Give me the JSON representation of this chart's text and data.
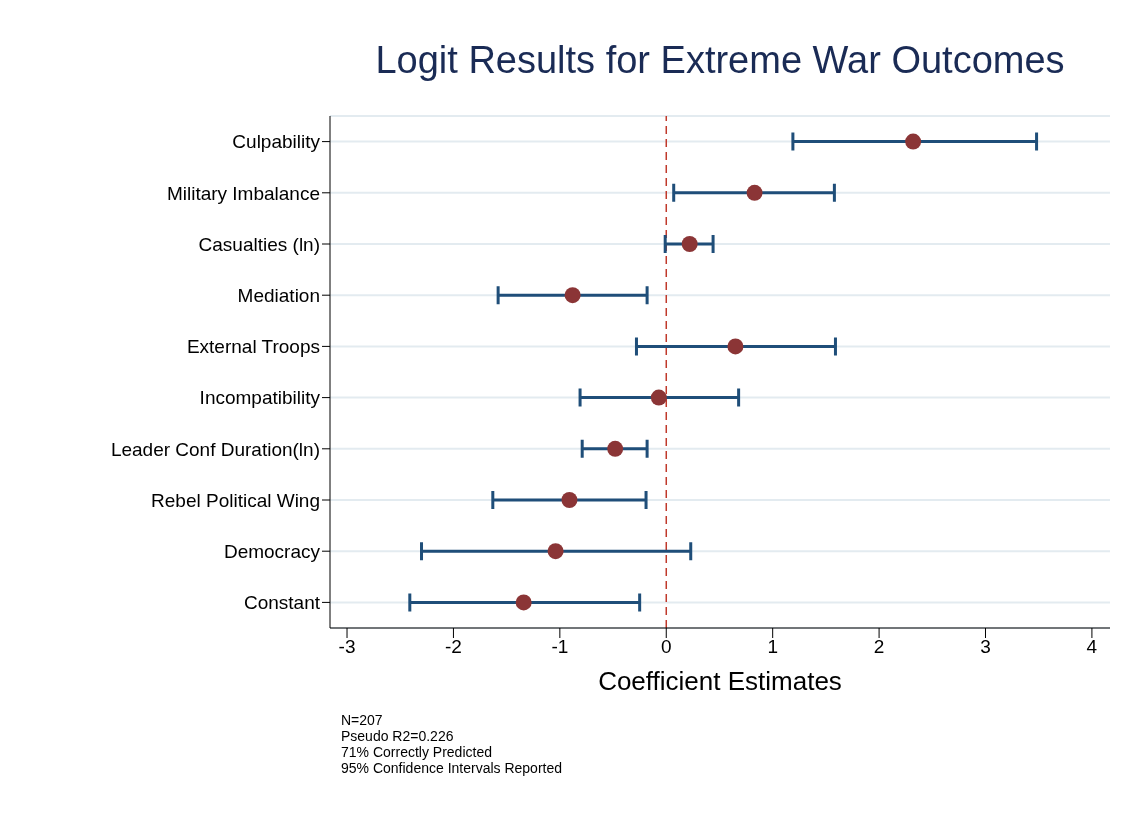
{
  "chart_data": {
    "type": "scatter",
    "title": "Logit Results for Extreme War Outcomes",
    "xlabel": "Coefficient Estimates",
    "orientation": "horizontal",
    "categories": [
      "Culpability",
      "Military Imbalance",
      "Casualties (ln)",
      "Mediation",
      "External Troops",
      "Incompatibility",
      "Leader Conf Duration(ln)",
      "Rebel Political Wing",
      "Democracy",
      "Constant"
    ],
    "color": "#8b3536",
    "values": [
      2.32,
      0.83,
      0.22,
      -0.88,
      0.65,
      -0.07,
      -0.48,
      -0.91,
      -1.04,
      -1.34
    ],
    "errors": [
      [
        1.19,
        3.48
      ],
      [
        0.07,
        1.58
      ],
      [
        -0.01,
        0.44
      ],
      [
        -1.58,
        -0.18
      ],
      [
        -0.28,
        1.59
      ],
      [
        -0.81,
        0.68
      ],
      [
        -0.79,
        -0.18
      ],
      [
        -1.63,
        -0.19
      ],
      [
        -2.3,
        0.23
      ],
      [
        -2.41,
        -0.25
      ]
    ],
    "xlim": [
      -3.16,
      4.17
    ],
    "xticks": [
      -3,
      -2,
      -1,
      0,
      1,
      2,
      3,
      4
    ],
    "ref_lines": [
      {
        "axis": "x",
        "value": 0,
        "color": "#c0392b",
        "line_style": "dashed"
      }
    ],
    "grid": "y",
    "marker": "circle",
    "legend": false,
    "annotations": [
      "N=207",
      "Pseudo R2=0.226",
      "71% Correctly Predicted",
      "95% Confidence Intervals Reported"
    ]
  }
}
